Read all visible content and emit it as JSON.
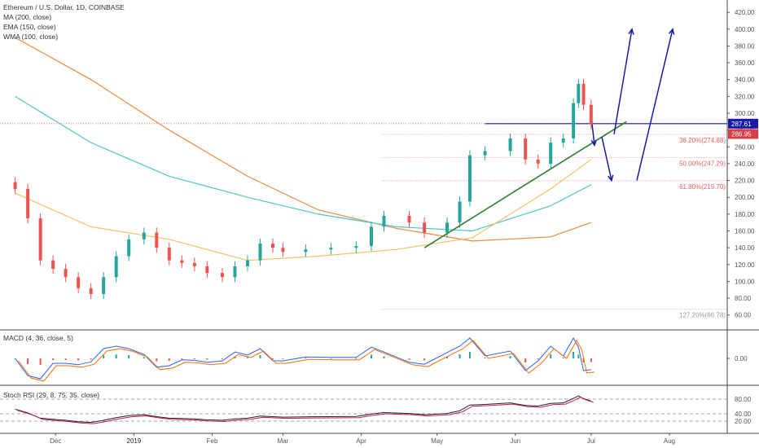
{
  "header": {
    "symbol_title": "Ethereum / U.S. Dollar, 1D, COINBASE",
    "indicators": [
      "MA (200, close)",
      "EMA (150, close)",
      "WMA (100, close)"
    ]
  },
  "panels": {
    "macd_label": "MACD (4, 36, close, 5)",
    "rsi_label": "Stoch RSI (29, 8, 75, 35, close)"
  },
  "price_tags": {
    "current": "287.61",
    "previous": "286.95"
  },
  "colors": {
    "up": "#26a69a",
    "down": "#ef5350",
    "ma200": "#ec8a3c",
    "ema150": "#4ec5c9",
    "wma100": "#f2c064",
    "trendline": "#2e7d32",
    "arrows": "#1a1aa8",
    "fib": "#e06060",
    "current_tag": "#1a1aa8",
    "previous_tag": "#d73f46"
  },
  "chart_data": [
    {
      "type": "line",
      "title": "Ethereum / U.S. Dollar, 1D, COINBASE",
      "x_ticks": [
        "Dec",
        "2019",
        "Feb",
        "Mar",
        "Apr",
        "May",
        "Jun",
        "Jul",
        "Aug"
      ],
      "y_ticks": [
        60,
        80,
        100,
        120,
        140,
        160,
        180,
        200,
        220,
        240,
        260,
        280,
        300,
        320,
        340,
        360,
        380,
        400,
        420
      ],
      "ylim": [
        52,
        425
      ],
      "grid": false,
      "series": [
        {
          "name": "MA (200, close)",
          "x": [
            "2018-11-15",
            "2018-12-15",
            "2019-01-15",
            "2019-02-15",
            "2019-03-15",
            "2019-04-15",
            "2019-05-15",
            "2019-06-15",
            "2019-07-01"
          ],
          "values": [
            390,
            340,
            280,
            225,
            185,
            163,
            148,
            153,
            170
          ]
        },
        {
          "name": "EMA (150, close)",
          "x": [
            "2018-11-15",
            "2018-12-15",
            "2019-01-15",
            "2019-02-15",
            "2019-03-15",
            "2019-04-15",
            "2019-05-15",
            "2019-06-15",
            "2019-07-01"
          ],
          "values": [
            320,
            265,
            225,
            200,
            180,
            165,
            160,
            190,
            215
          ]
        },
        {
          "name": "WMA (100, close)",
          "x": [
            "2018-11-15",
            "2018-12-15",
            "2019-01-15",
            "2019-02-15",
            "2019-03-15",
            "2019-04-15",
            "2019-05-15",
            "2019-06-15",
            "2019-07-01"
          ],
          "values": [
            205,
            165,
            150,
            125,
            130,
            138,
            152,
            210,
            245
          ]
        }
      ],
      "candles_close": [
        {
          "x": "2018-11-15",
          "value": 210
        },
        {
          "x": "2018-11-20",
          "value": 175
        },
        {
          "x": "2018-11-25",
          "value": 125
        },
        {
          "x": "2018-11-30",
          "value": 115
        },
        {
          "x": "2018-12-05",
          "value": 105
        },
        {
          "x": "2018-12-10",
          "value": 92
        },
        {
          "x": "2018-12-15",
          "value": 85
        },
        {
          "x": "2018-12-20",
          "value": 105
        },
        {
          "x": "2018-12-25",
          "value": 130
        },
        {
          "x": "2018-12-30",
          "value": 150
        },
        {
          "x": "2019-01-05",
          "value": 158
        },
        {
          "x": "2019-01-10",
          "value": 140
        },
        {
          "x": "2019-01-15",
          "value": 125
        },
        {
          "x": "2019-01-20",
          "value": 122
        },
        {
          "x": "2019-01-25",
          "value": 118
        },
        {
          "x": "2019-01-30",
          "value": 110
        },
        {
          "x": "2019-02-05",
          "value": 105
        },
        {
          "x": "2019-02-10",
          "value": 118
        },
        {
          "x": "2019-02-15",
          "value": 125
        },
        {
          "x": "2019-02-20",
          "value": 145
        },
        {
          "x": "2019-02-25",
          "value": 140
        },
        {
          "x": "2019-03-01",
          "value": 135
        },
        {
          "x": "2019-03-10",
          "value": 138
        },
        {
          "x": "2019-03-20",
          "value": 140
        },
        {
          "x": "2019-03-30",
          "value": 142
        },
        {
          "x": "2019-04-05",
          "value": 165
        },
        {
          "x": "2019-04-10",
          "value": 178
        },
        {
          "x": "2019-04-20",
          "value": 170
        },
        {
          "x": "2019-04-26",
          "value": 158
        },
        {
          "x": "2019-05-05",
          "value": 170
        },
        {
          "x": "2019-05-10",
          "value": 195
        },
        {
          "x": "2019-05-14",
          "value": 250
        },
        {
          "x": "2019-05-20",
          "value": 255
        },
        {
          "x": "2019-05-30",
          "value": 270
        },
        {
          "x": "2019-06-05",
          "value": 245
        },
        {
          "x": "2019-06-10",
          "value": 240
        },
        {
          "x": "2019-06-15",
          "value": 265
        },
        {
          "x": "2019-06-20",
          "value": 270
        },
        {
          "x": "2019-06-24",
          "value": 312
        },
        {
          "x": "2019-06-26",
          "value": 335
        },
        {
          "x": "2019-06-28",
          "value": 310
        },
        {
          "x": "2019-07-01",
          "value": 287
        }
      ],
      "annotations": {
        "horizontal_line": {
          "value": 287.61,
          "label": "287.61"
        },
        "previous_close": {
          "value": 286.95,
          "label": "286.95"
        },
        "fib_levels": [
          {
            "label": "38.20%(274.88)",
            "value": 274.88
          },
          {
            "label": "50.00%(247.29)",
            "value": 247.29
          },
          {
            "label": "61.80%(219.70)",
            "value": 219.7
          },
          {
            "label": "127.20%(66.78)",
            "value": 66.78
          }
        ],
        "trendline": {
          "from": {
            "x": "2019-04-26",
            "y": 140
          },
          "to": {
            "x": "2019-07-15",
            "y": 290
          }
        }
      }
    },
    {
      "type": "line",
      "title": "MACD (4, 36, close, 5)",
      "y_ticks": [
        0
      ],
      "y_tick_labels": [
        "0.00"
      ]
    },
    {
      "type": "line",
      "title": "Stoch RSI (29, 8, 75, 35, close)",
      "y_ticks": [
        80,
        40,
        20
      ],
      "y_tick_labels": [
        "80.00",
        "40.00",
        "20.00"
      ]
    }
  ]
}
